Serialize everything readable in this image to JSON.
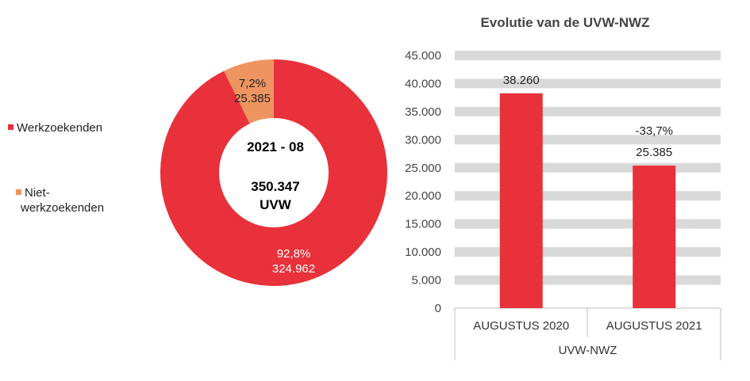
{
  "legend": {
    "items": [
      {
        "label": "Werkzoekenden",
        "color": "#e8313a"
      },
      {
        "label_line1": "Niet-",
        "label_line2": "werkzoekenden",
        "color": "#ee9460"
      }
    ]
  },
  "center": {
    "period": "2021 - 08",
    "total": "350.347",
    "unit": "UVW"
  },
  "bar_chart": {
    "title": "Evolutie  van de UVW-NWZ",
    "group_label": "UVW-NWZ"
  },
  "chart_data": [
    {
      "type": "pie",
      "variant": "donut",
      "slices": [
        {
          "name": "Werkzoekenden",
          "value": 324962,
          "percent_label": "92,8%",
          "value_label": "324.962",
          "color": "#e8313a"
        },
        {
          "name": "Niet-werkzoekenden",
          "value": 25385,
          "percent_label": "7,2%",
          "value_label": "25.385",
          "color": "#ee9460"
        }
      ],
      "legend_position": "left"
    },
    {
      "type": "bar",
      "title": "Evolutie  van de UVW-NWZ",
      "categories": [
        "AUGUSTUS 2020",
        "AUGUSTUS 2021"
      ],
      "values": [
        38260,
        25385
      ],
      "data_labels": [
        {
          "line1": "",
          "line2": "38.260"
        },
        {
          "line1": "-33,7%",
          "line2": "25.385"
        }
      ],
      "ylim": [
        0,
        45000
      ],
      "yticks": [
        0,
        5000,
        10000,
        15000,
        20000,
        25000,
        30000,
        35000,
        40000,
        45000
      ],
      "ytick_labels": [
        "0",
        "5.000",
        "10.000",
        "15.000",
        "20.000",
        "25.000",
        "30.000",
        "35.000",
        "40.000",
        "45.000"
      ],
      "group_label": "UVW-NWZ",
      "bar_color": "#e8313a",
      "grid": true,
      "grid_color": "#d9d9d9"
    }
  ]
}
